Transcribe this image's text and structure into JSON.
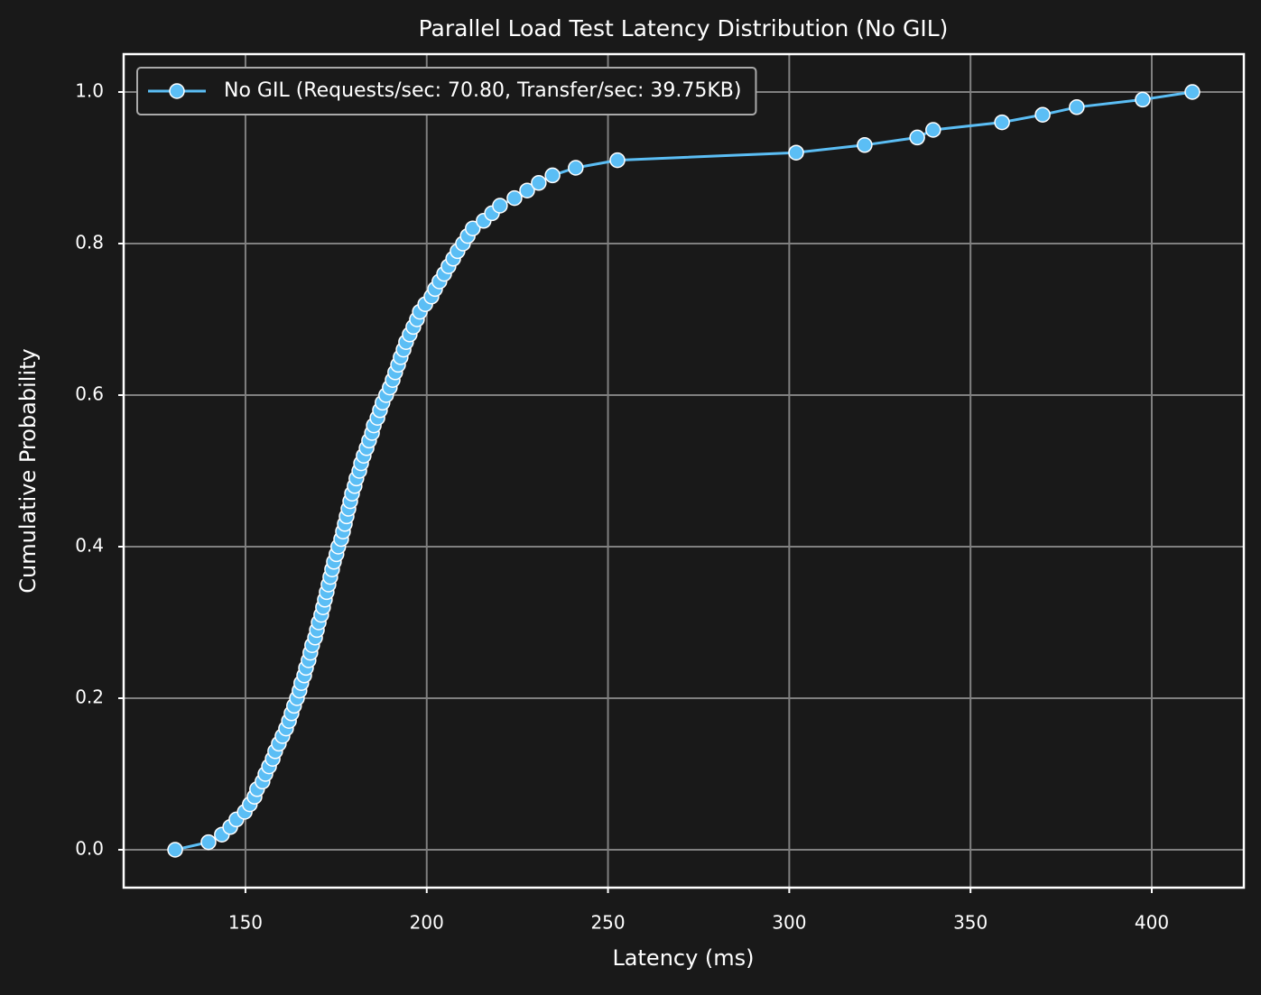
{
  "chart_data": {
    "type": "line",
    "title": "Parallel Load Test Latency Distribution (No GIL)",
    "xlabel": "Latency (ms)",
    "ylabel": "Cumulative Probability",
    "x": [
      130.6,
      139.8,
      143.5,
      145.8,
      147.5,
      149.8,
      151.2,
      152.5,
      153.2,
      154.7,
      155.5,
      156.5,
      157.5,
      158.2,
      159.2,
      160.2,
      161.2,
      162,
      162.7,
      163.4,
      164.2,
      164.9,
      165.4,
      166.2,
      166.7,
      167.4,
      167.9,
      168.4,
      169.2,
      169.7,
      170.2,
      170.9,
      171.4,
      171.9,
      172.4,
      172.9,
      173.4,
      173.9,
      174.4,
      175.1,
      175.6,
      176.4,
      176.9,
      177.4,
      177.9,
      178.4,
      178.9,
      179.4,
      180.1,
      180.6,
      181.4,
      181.9,
      182.6,
      183.4,
      184.1,
      184.9,
      185.4,
      186.4,
      187.1,
      187.8,
      188.8,
      189.8,
      190.6,
      191.3,
      192.1,
      192.8,
      193.6,
      194.3,
      195.3,
      196.3,
      197.3,
      198.1,
      199.6,
      201.3,
      202.3,
      203.5,
      204.8,
      206,
      207.3,
      208.5,
      210,
      211.3,
      212.7,
      215.7,
      218,
      220.2,
      224.2,
      227.7,
      230.9,
      234.7,
      241.1,
      252.6,
      301.9,
      320.8,
      335.3,
      339.7,
      358.7,
      369.9,
      379.3,
      397.5,
      411.2
    ],
    "series": [
      {
        "name": "No GIL (Requests/sec: 70.80, Transfer/sec: 39.75KB)",
        "color": "#5bbef5",
        "values": [
          0,
          0.01,
          0.02,
          0.03,
          0.04,
          0.05,
          0.06,
          0.07,
          0.08,
          0.09,
          0.1,
          0.11,
          0.12,
          0.13,
          0.14,
          0.15,
          0.16,
          0.17,
          0.18,
          0.19,
          0.2,
          0.21,
          0.22,
          0.23,
          0.24,
          0.25,
          0.26,
          0.27,
          0.28,
          0.29,
          0.3,
          0.31,
          0.32,
          0.33,
          0.34,
          0.35,
          0.36,
          0.37,
          0.38,
          0.39,
          0.4,
          0.41,
          0.42,
          0.43,
          0.44,
          0.45,
          0.46,
          0.47,
          0.48,
          0.49,
          0.5,
          0.51,
          0.52,
          0.53,
          0.54,
          0.55,
          0.56,
          0.57,
          0.58,
          0.59,
          0.6,
          0.61,
          0.62,
          0.63,
          0.64,
          0.65,
          0.66,
          0.67,
          0.68,
          0.69,
          0.7,
          0.71,
          0.72,
          0.73,
          0.74,
          0.75,
          0.76,
          0.77,
          0.78,
          0.79,
          0.8,
          0.81,
          0.82,
          0.83,
          0.84,
          0.85,
          0.86,
          0.87,
          0.88,
          0.89,
          0.9,
          0.91,
          0.92,
          0.93,
          0.94,
          0.95,
          0.96,
          0.97,
          0.98,
          0.99,
          1
        ]
      }
    ],
    "xlim": [
      116.4,
      425.4
    ],
    "ylim": [
      -0.05,
      1.05
    ],
    "xticks": [
      150,
      200,
      250,
      300,
      350,
      400
    ],
    "yticks": [
      {
        "value": 0,
        "label": "0.0"
      },
      0.2,
      0.4,
      0.6,
      0.8,
      {
        "value": 1,
        "label": "1.0"
      }
    ],
    "grid": true,
    "legend": "upper left"
  }
}
